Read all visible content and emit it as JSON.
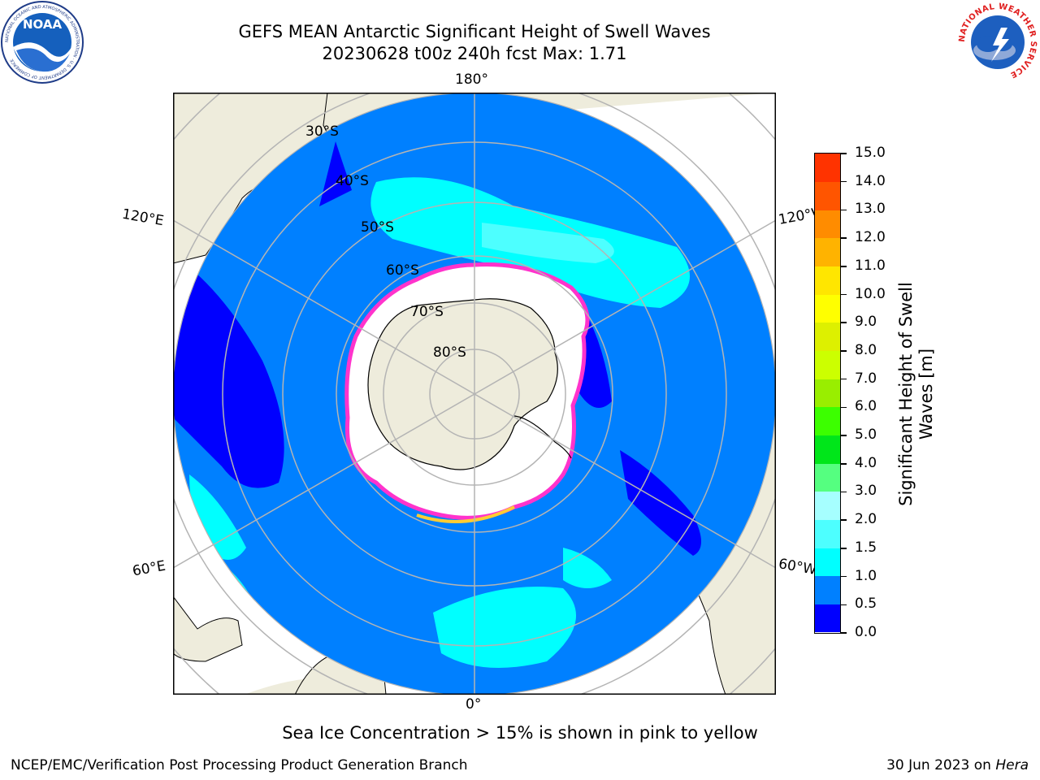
{
  "header": {
    "title": "GEFS MEAN Antarctic Significant Height of Swell Waves",
    "subtitle": "20230628 t00z 240h fcst   Max: 1.71"
  },
  "logos": {
    "noaa": {
      "text": "NOAA",
      "ring_text": "NATIONAL OCEANIC AND ATMOSPHERIC ADMINISTRATION · U.S. DEPARTMENT OF COMMERCE"
    },
    "nws": {
      "ring_text": "NATIONAL WEATHER SERVICE"
    }
  },
  "map": {
    "projection": "south-polar-stereographic",
    "longitude_labels": [
      "180°",
      "120°E",
      "120°W",
      "60°E",
      "60°W",
      "0°"
    ],
    "latitude_labels": [
      "30°S",
      "40°S",
      "50°S",
      "60°S",
      "70°S",
      "80°S"
    ],
    "colors": {
      "land": "#eeecdc",
      "ocean_0_5": "#0000ff",
      "ocean_0_5_1_0": "#0080ff",
      "ocean_1_0_1_5": "#00ffff",
      "ocean_1_5_2_0": "#4dffff",
      "sea_ice": "#ffffff",
      "ice_edge": "#ff33cc",
      "ice_edge_high": "#ffcc33",
      "gridline": "#b4b4b4"
    }
  },
  "colorbar": {
    "label": "Significant Height of Swell Waves [m]",
    "ticks": [
      "0.0",
      "0.5",
      "1.0",
      "1.5",
      "2.0",
      "3.0",
      "4.0",
      "5.0",
      "6.0",
      "7.0",
      "8.0",
      "9.0",
      "10.0",
      "11.0",
      "12.0",
      "13.0",
      "14.0",
      "15.0"
    ],
    "colors": [
      "#0000ff",
      "#0080ff",
      "#00ffff",
      "#4dffff",
      "#a6ffff",
      "#55ff80",
      "#00e61a",
      "#3cff00",
      "#99ee00",
      "#ccff00",
      "#ddf000",
      "#ffff00",
      "#ffe600",
      "#ffb300",
      "#ff8c00",
      "#ff5500",
      "#ff3300"
    ]
  },
  "footer": {
    "note": "Sea Ice Concentration > 15% is shown in pink to yellow",
    "org": "NCEP/EMC/Verification Post Processing Product Generation Branch",
    "date": "30 Jun 2023 on",
    "host": "Hera"
  }
}
